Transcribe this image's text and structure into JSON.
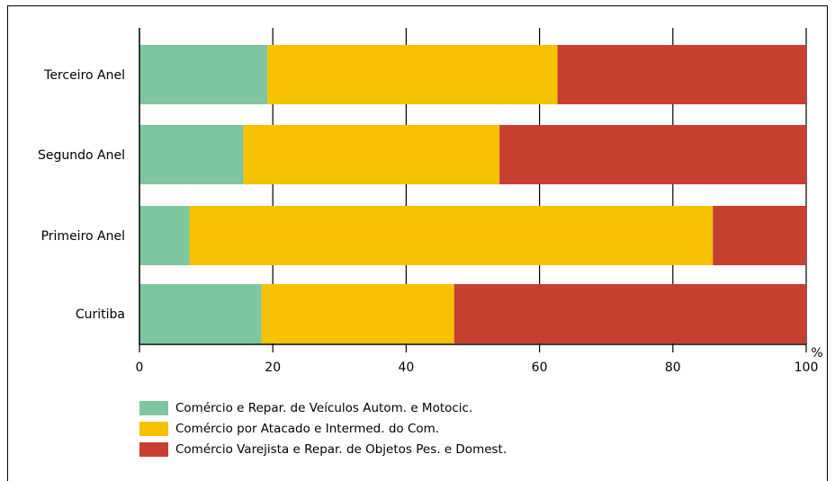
{
  "chart_data": {
    "type": "bar",
    "orientation": "horizontal",
    "stacked": true,
    "categories": [
      "Terceiro Anel",
      "Segundo Anel",
      "Primeiro Anel",
      "Curitiba"
    ],
    "series": [
      {
        "name": "Comércio e Repar. de Veículos Autom. e Motocic.",
        "color": "#7dc6a0",
        "values": [
          19.2,
          15.6,
          7.5,
          18.3
        ]
      },
      {
        "name": "Comércio por Atacado e Intermed. do Com.",
        "color": "#f6c200",
        "values": [
          43.5,
          38.4,
          78.5,
          28.9
        ]
      },
      {
        "name": "Comércio Varejista e Repar. de Objetos Pes. e Domest.",
        "color": "#c63f2f",
        "values": [
          37.3,
          46.0,
          14.0,
          52.8
        ]
      }
    ],
    "xlim": [
      0,
      100
    ],
    "xticks": [
      "0",
      "20",
      "40",
      "60",
      "80",
      "100"
    ],
    "xunit": "%",
    "grid": "vertical",
    "legend_position": "bottom"
  }
}
